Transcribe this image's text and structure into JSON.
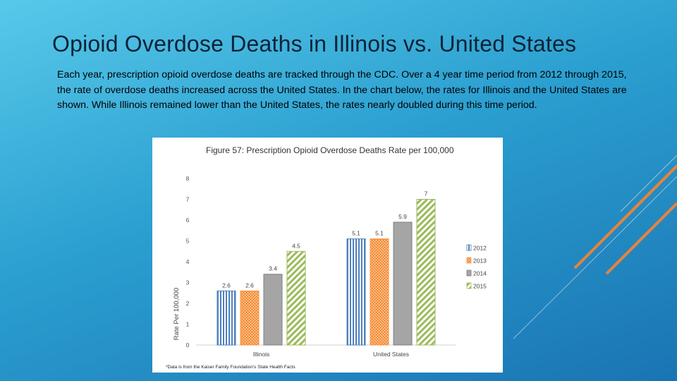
{
  "slide": {
    "title": "Opioid Overdose Deaths in Illinois vs. United States",
    "body": "Each year, prescription opioid overdose deaths are tracked through the CDC. Over a 4 year time period from 2012 through 2015, the rate of overdose deaths increased across the United States. In the chart below, the rates for Illinois and the United States are shown. While Illinois remained lower than the United States, the rates nearly doubled during this time period."
  },
  "colors": {
    "series_2012": "#4f81bd",
    "series_2013": "#f79646",
    "series_2014": "#a5a5a5",
    "series_2015": "#9bbb59",
    "accent_line": "#e8833a"
  },
  "chart_data": {
    "type": "bar",
    "title": "Figure 57: Prescription Opioid Overdose Deaths Rate per 100,000",
    "xlabel": "",
    "ylabel": "Rate Per 100,000",
    "ylim": [
      0,
      8
    ],
    "yticks": [
      "0",
      "1",
      "2",
      "3",
      "4",
      "5",
      "6",
      "7",
      "8"
    ],
    "categories": [
      "Illinois",
      "United States"
    ],
    "series": [
      {
        "name": "2012",
        "values": [
          2.6,
          5.1
        ],
        "labels": [
          "2.6",
          "5.1"
        ]
      },
      {
        "name": "2013",
        "values": [
          2.6,
          5.1
        ],
        "labels": [
          "2.6",
          "5.1"
        ]
      },
      {
        "name": "2014",
        "values": [
          3.4,
          5.9
        ],
        "labels": [
          "3.4",
          "5.9"
        ]
      },
      {
        "name": "2015",
        "values": [
          4.5,
          7.0
        ],
        "labels": [
          "4.5",
          "7"
        ]
      }
    ],
    "grid": false,
    "legend": "right",
    "footnote": "*Data is from the Kaiser Family Foundation's State Health Facts"
  }
}
